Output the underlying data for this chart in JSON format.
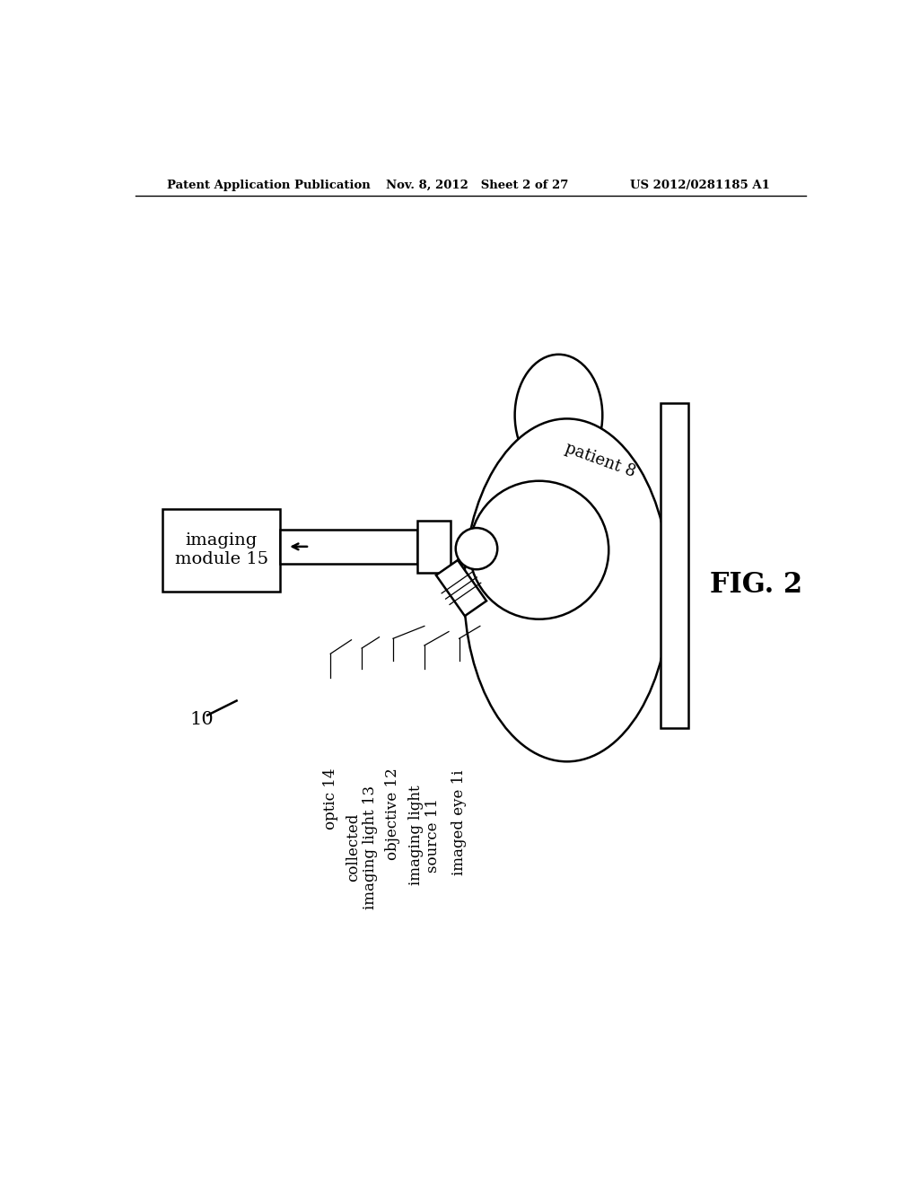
{
  "bg_color": "#ffffff",
  "header_left": "Patent Application Publication",
  "header_mid": "Nov. 8, 2012   Sheet 2 of 27",
  "header_right": "US 2012/0281185 A1",
  "fig_label": "FIG. 2",
  "system_label": "10",
  "labels": {
    "imaging_module": "imaging\nmodule 15",
    "optic": "optic 14",
    "collected": "collected\nimaging light 13",
    "objective": "objective 12",
    "imaging_light_source": "imaging light\nsource 11",
    "imaged_eye": "imaged eye 1i",
    "patient": "patient 8"
  },
  "lw": 1.8
}
